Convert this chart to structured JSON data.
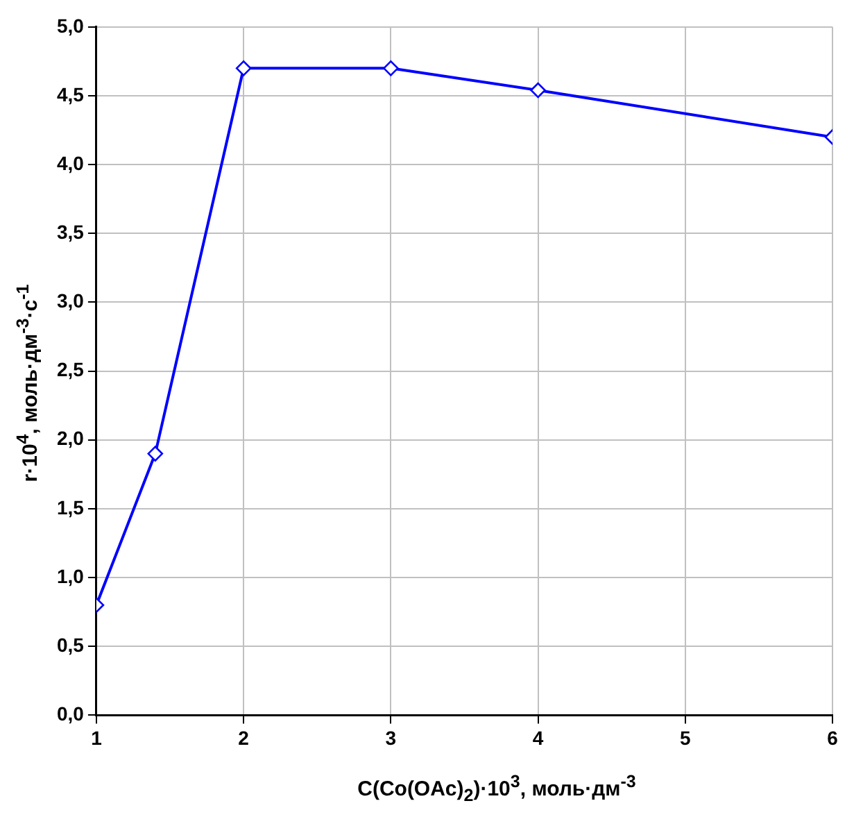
{
  "chart_data": {
    "type": "line",
    "xlabel": "C(Co(OAc)$_{2}$)·10$^{3}$, моль·дм$^{-3}$",
    "ylabel": "r·10$^{4}$, моль·дм$^{-3}$·с$^{-1}$",
    "x": [
      1,
      1.4,
      2,
      3,
      4,
      6
    ],
    "series": [
      {
        "color": "#0000ff",
        "values": [
          0.8,
          1.9,
          4.7,
          4.7,
          4.54,
          4.2
        ]
      }
    ],
    "xlim": [
      1,
      6
    ],
    "xticks": [
      1,
      2,
      3,
      4,
      5,
      6
    ],
    "ylim": [
      0,
      5
    ],
    "yticks": [
      {
        "value": 0,
        "label": "0,0"
      },
      {
        "value": 0.5,
        "label": "0,5"
      },
      {
        "value": 1,
        "label": "1,0"
      },
      {
        "value": 1.5,
        "label": "1,5"
      },
      {
        "value": 2,
        "label": "2,0"
      },
      {
        "value": 2.5,
        "label": "2,5"
      },
      {
        "value": 3,
        "label": "3,0"
      },
      {
        "value": 3.5,
        "label": "3,5"
      },
      {
        "value": 4,
        "label": "4,0"
      },
      {
        "value": 4.5,
        "label": "4,5"
      },
      {
        "value": 5,
        "label": "5,0"
      }
    ],
    "grid": true,
    "marker": "diamond",
    "line_style": "solid",
    "legend": false
  }
}
